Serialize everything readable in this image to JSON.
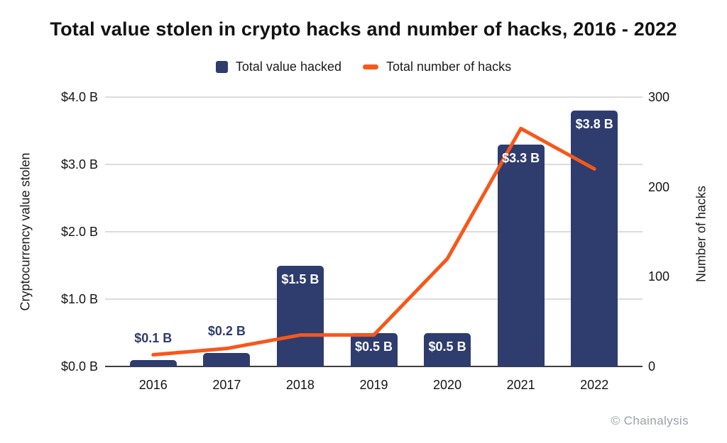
{
  "title": "Total value stolen in crypto hacks and number of hacks, 2016 - 2022",
  "attribution": "© Chainalysis",
  "legend": {
    "position": "top",
    "items": [
      {
        "label": "Total value hacked",
        "marker": "navy-square",
        "color": "#2e3c6e"
      },
      {
        "label": "Total number of hacks",
        "marker": "orange-dash",
        "color": "#f7571b"
      }
    ]
  },
  "chart_data": {
    "type": "combo",
    "title": "Total value stolen in crypto hacks and number of hacks, 2016 - 2022",
    "categories": [
      "2016",
      "2017",
      "2018",
      "2019",
      "2020",
      "2021",
      "2022"
    ],
    "series": [
      {
        "name": "Total value hacked",
        "type": "bar",
        "axis": "left",
        "unit": "USD billions",
        "color": "#2e3c6e",
        "values": [
          0.1,
          0.2,
          1.5,
          0.5,
          0.5,
          3.3,
          3.8
        ],
        "value_labels": [
          "$0.1 B",
          "$0.2 B",
          "$1.5 B",
          "$0.5 B",
          "$0.5 B",
          "$3.3 B",
          "$3.8 B"
        ],
        "label_placement": [
          "above",
          "above",
          "inside",
          "inside",
          "inside",
          "inside",
          "inside"
        ]
      },
      {
        "name": "Total number of hacks",
        "type": "line",
        "axis": "right",
        "unit": "hacks",
        "color": "#f7571b",
        "values": [
          13,
          20,
          35,
          35,
          120,
          265,
          220
        ]
      }
    ],
    "left_axis": {
      "title": "Cryptocurrency value stolen",
      "min": 0,
      "max": 4,
      "tick_labels": [
        "$4.0 B",
        "$3.0 B",
        "$2.0 B",
        "$1.0 B",
        "$0.0 B"
      ]
    },
    "right_axis": {
      "title": "Number of hacks",
      "min": 0,
      "max": 300,
      "tick_labels": [
        "300",
        "200",
        "100",
        "0"
      ]
    },
    "grid": "horizontal",
    "legend_position": "top"
  }
}
